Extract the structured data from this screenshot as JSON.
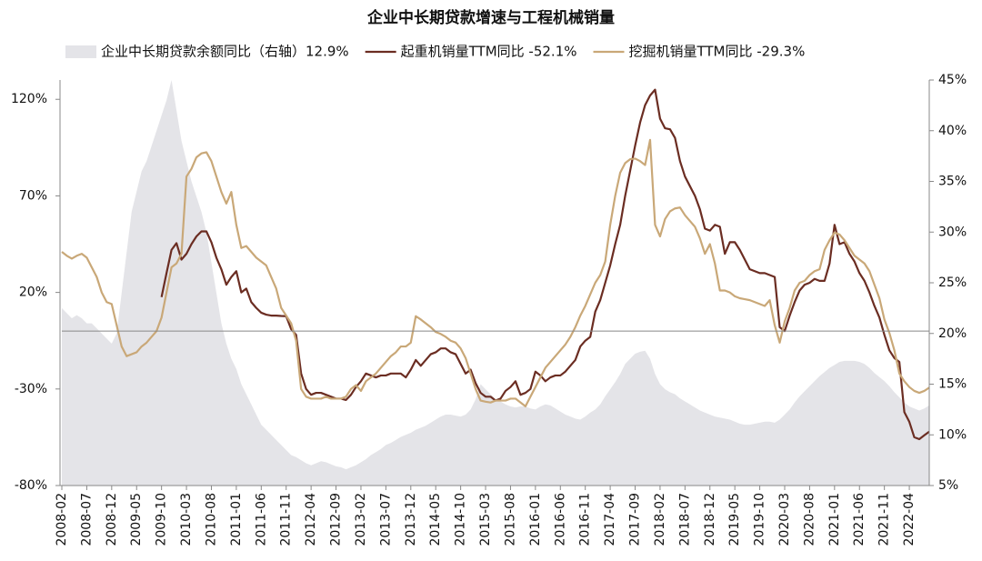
{
  "chart_data": {
    "type": "line",
    "title": "企业中长期贷款增速与工程机械销量",
    "categories": [
      "2008-02",
      null,
      null,
      null,
      null,
      "2008-07",
      null,
      null,
      null,
      null,
      "2008-12",
      null,
      null,
      null,
      null,
      "2009-05",
      null,
      null,
      null,
      null,
      "2009-10",
      null,
      null,
      null,
      null,
      "2010-03",
      null,
      null,
      null,
      null,
      "2010-08",
      null,
      null,
      null,
      null,
      "2011-01",
      null,
      null,
      null,
      null,
      "2011-06",
      null,
      null,
      null,
      null,
      "2011-11",
      null,
      null,
      null,
      null,
      "2012-04",
      null,
      null,
      null,
      null,
      "2012-09",
      null,
      null,
      null,
      null,
      "2013-02",
      null,
      null,
      null,
      null,
      "2013-07",
      null,
      null,
      null,
      null,
      "2013-12",
      null,
      null,
      null,
      null,
      "2014-05",
      null,
      null,
      null,
      null,
      "2014-10",
      null,
      null,
      null,
      null,
      "2015-03",
      null,
      null,
      null,
      null,
      "2015-08",
      null,
      null,
      null,
      null,
      "2016-01",
      null,
      null,
      null,
      null,
      "2016-06",
      null,
      null,
      null,
      null,
      "2016-11",
      null,
      null,
      null,
      null,
      "2017-04",
      null,
      null,
      null,
      null,
      "2017-09",
      null,
      null,
      null,
      null,
      "2018-02",
      null,
      null,
      null,
      null,
      "2018-07",
      null,
      null,
      null,
      null,
      "2018-12",
      null,
      null,
      null,
      null,
      "2019-05",
      null,
      null,
      null,
      null,
      "2019-10",
      null,
      null,
      null,
      null,
      "2020-03",
      null,
      null,
      null,
      null,
      "2020-08",
      null,
      null,
      null,
      null,
      "2021-01",
      null,
      null,
      null,
      null,
      "2021-06",
      null,
      null,
      null,
      null,
      "2021-11",
      null,
      null,
      null,
      null,
      "2022-04",
      null,
      null,
      null,
      null
    ],
    "series": [
      {
        "name": "企业中长期贷款余额同比（右轴）12.9%",
        "type": "area",
        "axis": "y2",
        "color": "#e4e4e8",
        "values": [
          22.5,
          22,
          21.5,
          21.8,
          21.5,
          21,
          21,
          20.5,
          20,
          19.5,
          19,
          20,
          24,
          28,
          32,
          34,
          36,
          37,
          38.5,
          40,
          41.5,
          43,
          45,
          42,
          39,
          37,
          35,
          33.5,
          32,
          30,
          27,
          24,
          21,
          19,
          17.5,
          16.5,
          15,
          14,
          13,
          12,
          11,
          10.5,
          10,
          9.5,
          9,
          8.5,
          8,
          7.8,
          7.5,
          7.2,
          7,
          7.2,
          7.4,
          7.3,
          7.1,
          6.9,
          6.8,
          6.6,
          6.8,
          7,
          7.3,
          7.6,
          8,
          8.3,
          8.6,
          9,
          9.2,
          9.5,
          9.8,
          10,
          10.2,
          10.5,
          10.7,
          10.9,
          11.2,
          11.5,
          11.8,
          12,
          12,
          11.9,
          11.8,
          12,
          12.5,
          13.5,
          15,
          14.5,
          14,
          13.5,
          13.3,
          13,
          12.8,
          12.7,
          12.8,
          12.8,
          12.6,
          12.5,
          12.8,
          13,
          12.9,
          12.6,
          12.3,
          12,
          11.8,
          11.6,
          11.5,
          11.8,
          12.2,
          12.5,
          13,
          13.8,
          14.5,
          15.2,
          16,
          17,
          17.5,
          18,
          18.2,
          18.3,
          17.5,
          16,
          15,
          14.5,
          14.2,
          14,
          13.6,
          13.3,
          13,
          12.7,
          12.4,
          12.2,
          12,
          11.8,
          11.7,
          11.6,
          11.5,
          11.3,
          11.1,
          11,
          11,
          11.1,
          11.2,
          11.3,
          11.3,
          11.2,
          11.5,
          12,
          12.5,
          13.2,
          13.8,
          14.3,
          14.8,
          15.3,
          15.8,
          16.2,
          16.6,
          16.9,
          17.2,
          17.3,
          17.3,
          17.3,
          17.2,
          17,
          16.6,
          16.1,
          15.7,
          15.3,
          14.8,
          14.2,
          13.7,
          13.2,
          12.8,
          12.6,
          12.4,
          12.6,
          12.9
        ]
      },
      {
        "name": "起重机销量TTM同比 -52.1%",
        "type": "line",
        "color": "#6b2d22",
        "values": [
          null,
          null,
          null,
          null,
          null,
          null,
          null,
          null,
          null,
          null,
          null,
          null,
          null,
          null,
          null,
          null,
          null,
          null,
          null,
          null,
          17.6,
          30,
          42,
          45.5,
          37,
          40,
          45,
          49,
          51.6,
          51.6,
          46,
          38,
          32,
          24,
          28,
          31,
          20,
          22,
          15,
          12,
          9.5,
          8.5,
          8,
          8,
          7.8,
          7.7,
          1,
          -2,
          -22,
          -30,
          -33,
          -32,
          -32,
          -33,
          -34,
          -35,
          -35,
          -35.7,
          -33,
          -29,
          -26,
          -22,
          -23,
          -24,
          -23,
          -23,
          -22,
          -22,
          -22,
          -24,
          -20,
          -15,
          -18,
          -15,
          -12,
          -11,
          -9,
          -9,
          -11,
          -12,
          -17,
          -22,
          -20,
          -27,
          -32,
          -34,
          -34,
          -36,
          -35,
          -31,
          -29,
          -26,
          -33,
          -32,
          -30,
          -21,
          -23,
          -26,
          -24,
          -23,
          -23,
          -21,
          -18,
          -15,
          -8,
          -5,
          -3,
          10,
          16,
          25,
          34,
          45,
          55,
          70,
          83,
          96,
          108,
          117,
          122,
          125,
          110,
          105,
          104.5,
          100,
          88,
          80,
          75,
          70,
          63,
          53,
          52,
          55,
          54,
          40,
          46,
          46,
          42,
          37,
          32,
          31,
          30,
          30,
          29,
          28,
          2,
          0,
          8,
          15,
          21,
          24,
          25,
          27,
          26,
          26,
          35,
          55,
          45,
          46,
          40,
          36,
          30,
          26,
          20,
          13,
          7,
          -2,
          -10,
          -14,
          -16,
          -42,
          -47,
          -55,
          -56,
          -54,
          -52.1
        ]
      },
      {
        "name": "挖掘机销量TTM同比 -29.3%",
        "type": "line",
        "color": "#c9a878",
        "values": [
          41,
          39,
          37.5,
          39,
          40,
          38,
          33,
          28,
          20,
          15,
          14,
          3,
          -8,
          -13,
          -12,
          -11,
          -8,
          -6,
          -3,
          0,
          7,
          20,
          33,
          35,
          40,
          80,
          84,
          90,
          92,
          92.6,
          88,
          80,
          72,
          66,
          72,
          55,
          43,
          44,
          41,
          38,
          36,
          34,
          28,
          22,
          12,
          8,
          4,
          -5,
          -30,
          -34,
          -35,
          -35,
          -35,
          -34,
          -35,
          -35,
          -35,
          -34,
          -30,
          -28,
          -31,
          -26,
          -24,
          -22,
          -19,
          -16,
          -13,
          -11,
          -8,
          -8,
          -6,
          7.7,
          6,
          4,
          2,
          -0.5,
          -1.5,
          -3,
          -5,
          -6,
          -9,
          -14,
          -22,
          -30,
          -36,
          -36.6,
          -37,
          -36,
          -36,
          -36,
          -35,
          -35,
          -37,
          -39,
          -34,
          -29,
          -24,
          -19,
          -16,
          -13,
          -10,
          -7,
          -3,
          2,
          8,
          13,
          19,
          25,
          29,
          36,
          55,
          70,
          82,
          87,
          89,
          89.3,
          88,
          86,
          99,
          55,
          49,
          58,
          62,
          63.5,
          64,
          60,
          57,
          54,
          48,
          40,
          45,
          35,
          21,
          21,
          20,
          18,
          17,
          16.5,
          16,
          15,
          14,
          13,
          16,
          3,
          -6,
          5,
          12,
          21,
          25,
          26,
          29,
          31,
          32,
          42,
          47,
          51,
          50,
          47,
          43,
          39,
          37,
          35,
          31,
          24,
          17,
          6,
          -1,
          -10,
          -22,
          -26,
          -29,
          -31,
          -32,
          -31,
          -29.3
        ]
      }
    ],
    "ylim": [
      -80,
      130
    ],
    "yticks": [
      {
        "value": -80,
        "label": "-80%"
      },
      {
        "value": -30,
        "label": "-30%"
      },
      {
        "value": 20,
        "label": "20%"
      },
      {
        "value": 70,
        "label": "70%"
      },
      {
        "value": 120,
        "label": "120%"
      }
    ],
    "y2lim": [
      5,
      45
    ],
    "y2ticks": [
      {
        "value": 5,
        "label": "5%"
      },
      {
        "value": 10,
        "label": "10%"
      },
      {
        "value": 15,
        "label": "15%"
      },
      {
        "value": 20,
        "label": "20%"
      },
      {
        "value": 25,
        "label": "25%"
      },
      {
        "value": 30,
        "label": "30%"
      },
      {
        "value": 35,
        "label": "35%"
      },
      {
        "value": 40,
        "label": "40%"
      },
      {
        "value": 45,
        "label": "45%"
      }
    ]
  }
}
